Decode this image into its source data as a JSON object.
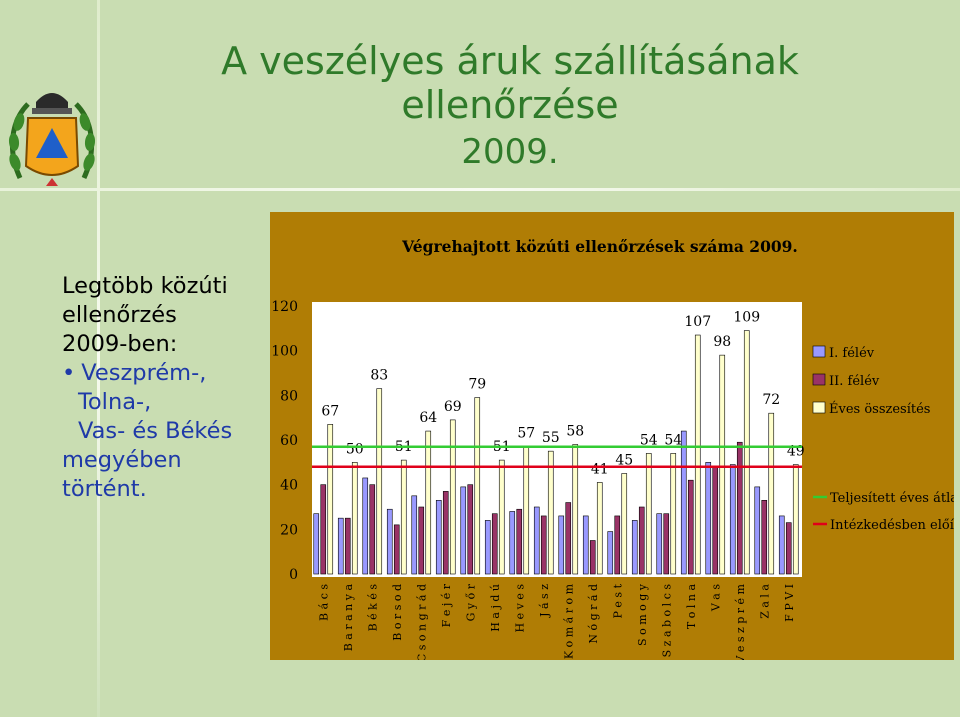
{
  "title": {
    "line1": "A veszélyes áruk szállításának",
    "line2": "ellenőrzése",
    "line3": "2009."
  },
  "sidebar": {
    "heading_lines": [
      "Legtöbb közúti",
      "ellenőrzés",
      "2009-ben:"
    ],
    "items": [
      "Veszprém-,",
      "Tolna-,",
      "Vas- és Békés"
    ],
    "tail_lines": [
      "megyében",
      "történt."
    ]
  },
  "colors": {
    "background": "#c9ddb2",
    "title": "#2f7a2a",
    "sidebar_blue": "#1f3aa8",
    "chart_frame": "#b07d05",
    "plot_area": "#ffffff",
    "series1": "#9999ff",
    "series2": "#993366",
    "series3": "#ffffcc",
    "avg_line": "#33cc33",
    "required_line": "#e0001a"
  },
  "chart_data": {
    "type": "bar",
    "title": "Végrehajtott közúti ellenőrzések száma 2009.",
    "ylim": [
      0,
      120
    ],
    "yticks": [
      0,
      20,
      40,
      60,
      80,
      100,
      120
    ],
    "categories": [
      "B á c s",
      "B a r a n y a",
      "B é k é s",
      "B o r s o d",
      "C s o n g r á d",
      "F e j é r",
      "G y ő r",
      "H a j d ú",
      "H e v e s",
      "J á s z",
      "K o m á r o m",
      "N ó g r á d",
      "P e s t",
      "S o m o g y",
      "S z a b o l c s",
      "T o l n a",
      "V a s",
      "V e s z p r é m",
      "Z a l a",
      "F P V I"
    ],
    "series": [
      {
        "name": "I. félév",
        "values": [
          27,
          25,
          43,
          29,
          35,
          33,
          39,
          24,
          28,
          30,
          26,
          26,
          19,
          24,
          27,
          64,
          50,
          49,
          39,
          26
        ]
      },
      {
        "name": "II. félév",
        "values": [
          40,
          25,
          40,
          22,
          30,
          37,
          40,
          27,
          29,
          26,
          32,
          15,
          26,
          30,
          27,
          42,
          48,
          59,
          33,
          23
        ]
      },
      {
        "name": "Éves összesítés",
        "values": [
          67,
          50,
          83,
          51,
          64,
          69,
          79,
          51,
          57,
          55,
          58,
          41,
          45,
          54,
          54,
          107,
          98,
          109,
          72,
          49
        ]
      }
    ],
    "lines": [
      {
        "name": "Teljesített éves átlag",
        "value": 57
      },
      {
        "name": "Intézkedésben előírt",
        "value": 48
      }
    ],
    "legend_placement": "right"
  }
}
